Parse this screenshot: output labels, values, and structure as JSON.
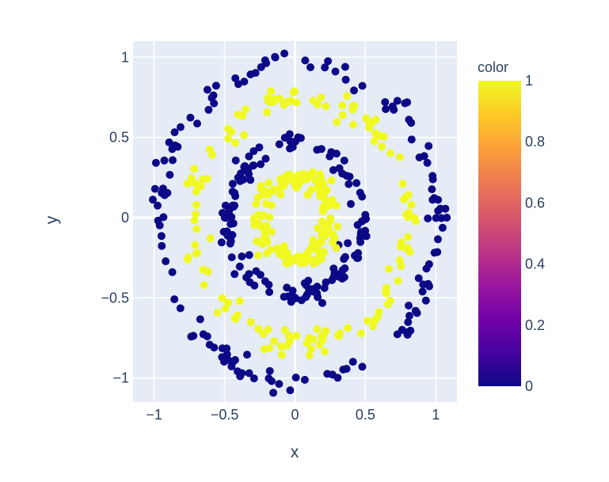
{
  "chart_data": {
    "type": "scatter",
    "title": "",
    "xlabel": "x",
    "ylabel": "y",
    "xlim": [
      -1.15,
      1.15
    ],
    "ylim": [
      -1.15,
      1.1
    ],
    "x_ticks": [
      -1,
      -0.5,
      0,
      0.5,
      1
    ],
    "x_tick_labels": [
      "−1",
      "−0.5",
      "0",
      "0.5",
      "1"
    ],
    "y_ticks": [
      1,
      0.5,
      0,
      -0.5,
      -1
    ],
    "y_tick_labels": [
      "1",
      "0.5",
      "0",
      "−0.5",
      "−1"
    ],
    "grid": true,
    "colorbar": {
      "title": "color",
      "range": [
        0,
        1
      ],
      "ticks": [
        1,
        0.8,
        0.6,
        0.4,
        0.2,
        0
      ],
      "tick_labels": [
        "1",
        "0.8",
        "0.6",
        "0.4",
        "0.2",
        "0"
      ]
    },
    "series": [
      {
        "color_value": 0,
        "ring_radius": 0.99,
        "ring_center": [
          0.02,
          -0.03
        ],
        "approx_points": 140
      },
      {
        "color_value": 1,
        "ring_radius": 0.77,
        "ring_center": [
          0.04,
          -0.02
        ],
        "approx_points": 140
      },
      {
        "color_value": 0,
        "ring_radius": 0.47,
        "ring_center": [
          0.0,
          -0.01
        ],
        "approx_points": 140
      },
      {
        "color_value": 1,
        "ring_radius": 0.25,
        "ring_center": [
          0.01,
          0.0
        ],
        "approx_points": 140
      }
    ]
  },
  "colors": {
    "plot_bg": "#e5ecf6",
    "grid": "#ffffff",
    "low": "#0d0887",
    "high": "#f0f921",
    "colorscale": [
      "#0d0887",
      "#46039f",
      "#7201a8",
      "#9c179e",
      "#bd3786",
      "#d8576b",
      "#ed7953",
      "#fb9f3a",
      "#fdca26",
      "#f0f921"
    ]
  }
}
